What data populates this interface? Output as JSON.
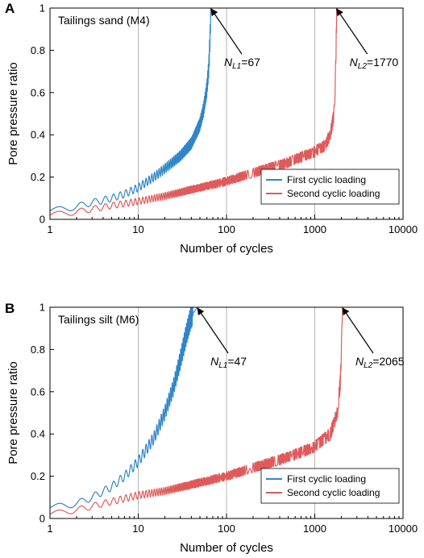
{
  "panels": [
    {
      "label": "A",
      "sample_label": "Tailings sand (M4)"
    },
    {
      "label": "B",
      "sample_label": "Tailings silt (M6)"
    }
  ],
  "chart_data": [
    {
      "type": "line",
      "xscale": "log",
      "xlabel": "Number of cycles",
      "ylabel": "Pore pressure ratio",
      "xlim": [
        1,
        10000
      ],
      "ylim": [
        0,
        1
      ],
      "xticks": [
        "1",
        "10",
        "100",
        "1000",
        "10000"
      ],
      "yticks": [
        "0",
        "0.2",
        "0.4",
        "0.6",
        "0.8",
        "1"
      ],
      "vertical_gridlines": [
        10,
        100,
        1000
      ],
      "legend": "bottom-right",
      "series": [
        {
          "name": "First cyclic loading",
          "color": "#2e86c8",
          "points": [
            [
              1,
              0.04
            ],
            [
              1.5,
              0.05
            ],
            [
              2,
              0.06
            ],
            [
              3,
              0.08
            ],
            [
              4,
              0.09
            ],
            [
              5,
              0.1
            ],
            [
              7,
              0.12
            ],
            [
              10,
              0.15
            ],
            [
              15,
              0.2
            ],
            [
              20,
              0.24
            ],
            [
              30,
              0.3
            ],
            [
              40,
              0.36
            ],
            [
              50,
              0.45
            ],
            [
              55,
              0.52
            ],
            [
              60,
              0.62
            ],
            [
              63,
              0.72
            ],
            [
              65,
              0.85
            ],
            [
              66,
              0.95
            ],
            [
              67,
              1.0
            ]
          ]
        },
        {
          "name": "Second cyclic loading",
          "color": "#e05a5a",
          "points": [
            [
              1,
              0.02
            ],
            [
              2,
              0.035
            ],
            [
              5,
              0.065
            ],
            [
              10,
              0.085
            ],
            [
              20,
              0.11
            ],
            [
              50,
              0.15
            ],
            [
              100,
              0.18
            ],
            [
              200,
              0.22
            ],
            [
              500,
              0.27
            ],
            [
              1000,
              0.32
            ],
            [
              1300,
              0.35
            ],
            [
              1500,
              0.4
            ],
            [
              1650,
              0.5
            ],
            [
              1700,
              0.6
            ],
            [
              1730,
              0.75
            ],
            [
              1760,
              0.9
            ],
            [
              1770,
              1.0
            ]
          ]
        }
      ],
      "annotations": [
        {
          "prefix": "N",
          "sub": "L1",
          "value": "=67",
          "x": 67,
          "y": 1.0
        },
        {
          "prefix": "N",
          "sub": "L2",
          "value": "=1770",
          "x": 1770,
          "y": 1.0
        }
      ]
    },
    {
      "type": "line",
      "xscale": "log",
      "xlabel": "Number of cycles",
      "ylabel": "Pore pressure ratio",
      "xlim": [
        1,
        10000
      ],
      "ylim": [
        0,
        1
      ],
      "xticks": [
        "1",
        "10",
        "100",
        "1000",
        "10000"
      ],
      "yticks": [
        "0",
        "0.2",
        "0.4",
        "0.6",
        "0.8",
        "1"
      ],
      "vertical_gridlines": [
        10,
        100,
        1000
      ],
      "legend": "bottom-right",
      "series": [
        {
          "name": "First cyclic loading",
          "color": "#2e86c8",
          "points": [
            [
              1,
              0.05
            ],
            [
              2,
              0.07
            ],
            [
              3,
              0.1
            ],
            [
              5,
              0.15
            ],
            [
              7,
              0.2
            ],
            [
              10,
              0.27
            ],
            [
              15,
              0.38
            ],
            [
              20,
              0.5
            ],
            [
              25,
              0.62
            ],
            [
              30,
              0.75
            ],
            [
              35,
              0.87
            ],
            [
              40,
              0.96
            ],
            [
              45,
              0.99
            ],
            [
              47,
              1.0
            ]
          ]
        },
        {
          "name": "Second cyclic loading",
          "color": "#e05a5a",
          "points": [
            [
              1,
              0.02
            ],
            [
              2,
              0.04
            ],
            [
              5,
              0.08
            ],
            [
              10,
              0.11
            ],
            [
              20,
              0.13
            ],
            [
              50,
              0.17
            ],
            [
              100,
              0.2
            ],
            [
              200,
              0.24
            ],
            [
              500,
              0.29
            ],
            [
              1000,
              0.34
            ],
            [
              1500,
              0.4
            ],
            [
              1800,
              0.5
            ],
            [
              1950,
              0.65
            ],
            [
              2000,
              0.8
            ],
            [
              2040,
              0.95
            ],
            [
              2065,
              1.0
            ]
          ]
        }
      ],
      "annotations": [
        {
          "prefix": "N",
          "sub": "L1",
          "value": "=47",
          "x": 47,
          "y": 1.0
        },
        {
          "prefix": "N",
          "sub": "L2",
          "value": "=2065",
          "x": 2065,
          "y": 1.0
        }
      ]
    }
  ]
}
